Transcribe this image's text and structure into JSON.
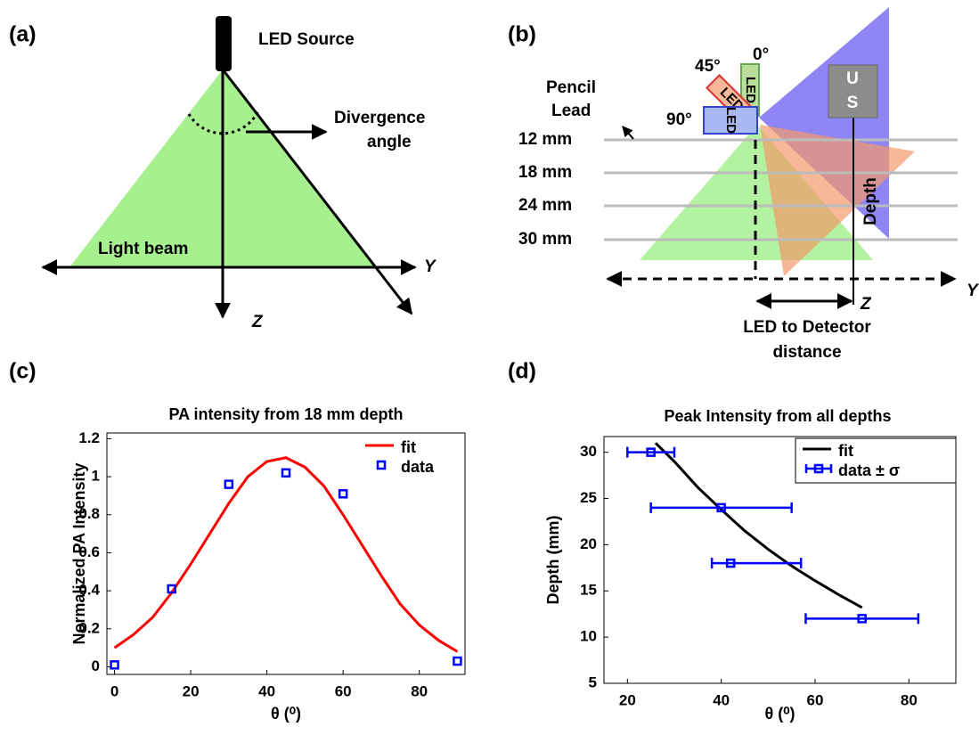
{
  "panel_labels": [
    "(a)",
    "(b)",
    "(c)",
    "(d)"
  ],
  "diagram_a": {
    "source": "LED Source",
    "divergence": [
      "Divergence",
      "angle"
    ],
    "beam": "Light beam",
    "y_axis": "Y",
    "z_axis": "Z"
  },
  "diagram_b": {
    "angles": [
      "45°",
      "0°",
      "90°"
    ],
    "pencil": [
      "Pencil",
      "Lead"
    ],
    "depths": [
      "12 mm",
      "18 mm",
      "24 mm",
      "30 mm"
    ],
    "led": "LED",
    "detector": [
      "U",
      "S"
    ],
    "depth": "Depth",
    "y_axis": "Y",
    "z_axis": "Z",
    "distance": [
      "LED to Detector",
      "distance"
    ]
  },
  "chart_data": [
    {
      "type": "line",
      "title": "PA intensity from 18 mm depth",
      "xlabel": "θ (⁰)",
      "ylabel": "Normalized PA Intensity",
      "xlim": [
        -2,
        92
      ],
      "ylim": [
        -0.04,
        1.23
      ],
      "xticks": [
        0,
        20,
        40,
        60,
        80
      ],
      "yticks": [
        0,
        0.2,
        0.4,
        0.6,
        0.8,
        1,
        1.2
      ],
      "legend": "upper right",
      "legend_frame": false,
      "series": [
        {
          "name": "fit",
          "mode": "line",
          "color": "#ff0000",
          "x": [
            0,
            5,
            10,
            15,
            20,
            25,
            30,
            35,
            40,
            45,
            50,
            55,
            60,
            65,
            70,
            75,
            80,
            85,
            90
          ],
          "values": [
            0.1,
            0.17,
            0.26,
            0.39,
            0.54,
            0.7,
            0.86,
            1.0,
            1.08,
            1.1,
            1.05,
            0.95,
            0.8,
            0.64,
            0.48,
            0.33,
            0.22,
            0.14,
            0.08
          ]
        },
        {
          "name": "data",
          "mode": "markers",
          "color": "#0000ff",
          "x": [
            0,
            15,
            30,
            45,
            60,
            90
          ],
          "values": [
            0.01,
            0.41,
            0.96,
            1.02,
            0.91,
            0.03
          ]
        }
      ]
    },
    {
      "type": "line",
      "title": "Peak Intensity from all depths",
      "xlabel": "θ (⁰)",
      "ylabel": "Depth (mm)",
      "xlim": [
        15,
        90
      ],
      "ylim": [
        5,
        31.7
      ],
      "xticks": [
        20,
        40,
        60,
        80
      ],
      "yticks": [
        5,
        10,
        15,
        20,
        25,
        30
      ],
      "legend": "upper right",
      "legend_frame": true,
      "series": [
        {
          "name": "fit",
          "mode": "line",
          "color": "#000000",
          "x": [
            26,
            30,
            35,
            40,
            45,
            50,
            55,
            60,
            65,
            70
          ],
          "values": [
            31,
            29,
            26.2,
            23.8,
            21.5,
            19.5,
            17.7,
            16.1,
            14.6,
            13.2
          ]
        },
        {
          "name": "data ± σ",
          "mode": "markers",
          "color": "#0000ff",
          "x": [
            25,
            40,
            42,
            70
          ],
          "values": [
            30,
            24,
            18,
            12
          ],
          "xerr": [
            [
              5,
              5
            ],
            [
              15,
              15
            ],
            [
              4,
              15
            ],
            [
              12,
              12
            ]
          ]
        }
      ]
    }
  ]
}
